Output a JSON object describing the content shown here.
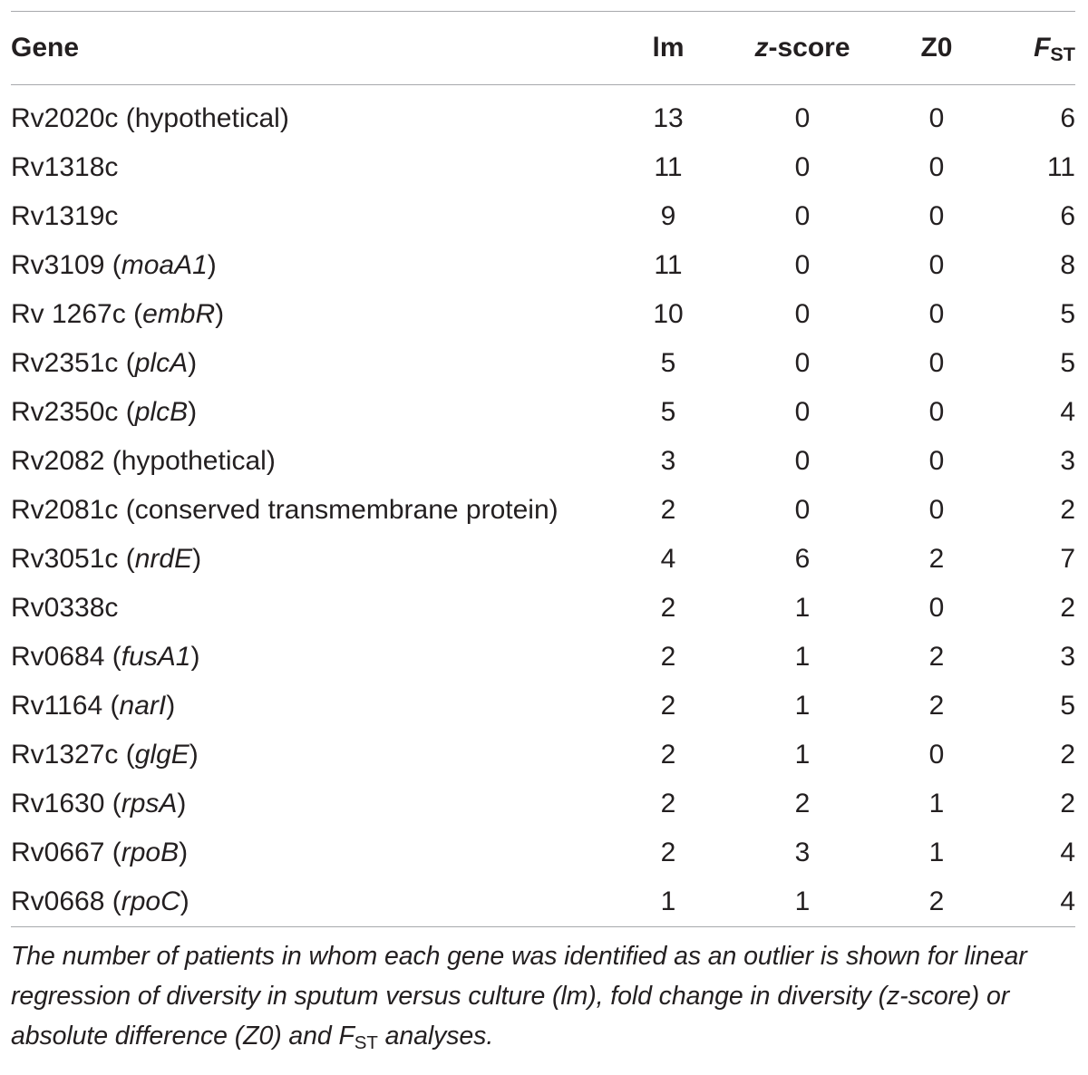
{
  "table": {
    "headers": {
      "gene": "Gene",
      "lm": "lm",
      "z_score_italic": "z",
      "z_score_rest": "-score",
      "z0": "Z0",
      "fst_main": "F",
      "fst_sub": "ST"
    },
    "rows": [
      {
        "gene_plain": "Rv2020c (hypothetical)",
        "gene_prefix": "",
        "gene_italic": "",
        "gene_suffix": "",
        "lm": "13",
        "z": "0",
        "z0": "0",
        "fst": "6"
      },
      {
        "gene_plain": "Rv1318c",
        "gene_prefix": "",
        "gene_italic": "",
        "gene_suffix": "",
        "lm": "11",
        "z": "0",
        "z0": "0",
        "fst": "11"
      },
      {
        "gene_plain": "Rv1319c",
        "gene_prefix": "",
        "gene_italic": "",
        "gene_suffix": "",
        "lm": "9",
        "z": "0",
        "z0": "0",
        "fst": "6"
      },
      {
        "gene_plain": "",
        "gene_prefix": "Rv3109 (",
        "gene_italic": "moaA1",
        "gene_suffix": ")",
        "lm": "11",
        "z": "0",
        "z0": "0",
        "fst": "8"
      },
      {
        "gene_plain": "",
        "gene_prefix": "Rv 1267c (",
        "gene_italic": "embR",
        "gene_suffix": ")",
        "lm": "10",
        "z": "0",
        "z0": "0",
        "fst": "5"
      },
      {
        "gene_plain": "",
        "gene_prefix": "Rv2351c (",
        "gene_italic": "plcA",
        "gene_suffix": ")",
        "lm": "5",
        "z": "0",
        "z0": "0",
        "fst": "5"
      },
      {
        "gene_plain": "",
        "gene_prefix": "Rv2350c (",
        "gene_italic": "plcB",
        "gene_suffix": ")",
        "lm": "5",
        "z": "0",
        "z0": "0",
        "fst": "4"
      },
      {
        "gene_plain": "Rv2082 (hypothetical)",
        "gene_prefix": "",
        "gene_italic": "",
        "gene_suffix": "",
        "lm": "3",
        "z": "0",
        "z0": "0",
        "fst": "3"
      },
      {
        "gene_plain": "Rv2081c (conserved transmembrane protein)",
        "gene_prefix": "",
        "gene_italic": "",
        "gene_suffix": "",
        "lm": "2",
        "z": "0",
        "z0": "0",
        "fst": "2"
      },
      {
        "gene_plain": "",
        "gene_prefix": "Rv3051c (",
        "gene_italic": "nrdE",
        "gene_suffix": ")",
        "lm": "4",
        "z": "6",
        "z0": "2",
        "fst": "7"
      },
      {
        "gene_plain": "Rv0338c",
        "gene_prefix": "",
        "gene_italic": "",
        "gene_suffix": "",
        "lm": "2",
        "z": "1",
        "z0": "0",
        "fst": "2"
      },
      {
        "gene_plain": "",
        "gene_prefix": "Rv0684 (",
        "gene_italic": "fusA1",
        "gene_suffix": ")",
        "lm": "2",
        "z": "1",
        "z0": "2",
        "fst": "3"
      },
      {
        "gene_plain": "",
        "gene_prefix": "Rv1164 (",
        "gene_italic": "narI",
        "gene_suffix": ")",
        "lm": "2",
        "z": "1",
        "z0": "2",
        "fst": "5"
      },
      {
        "gene_plain": "",
        "gene_prefix": "Rv1327c (",
        "gene_italic": "glgE",
        "gene_suffix": ")",
        "lm": "2",
        "z": "1",
        "z0": "0",
        "fst": "2"
      },
      {
        "gene_plain": "",
        "gene_prefix": "Rv1630 (",
        "gene_italic": "rpsA",
        "gene_suffix": ")",
        "lm": "2",
        "z": "2",
        "z0": "1",
        "fst": "2"
      },
      {
        "gene_plain": "",
        "gene_prefix": "Rv0667 (",
        "gene_italic": "rpoB",
        "gene_suffix": ")",
        "lm": "2",
        "z": "3",
        "z0": "1",
        "fst": "4"
      },
      {
        "gene_plain": "",
        "gene_prefix": "Rv0668 (",
        "gene_italic": "rpoC",
        "gene_suffix": ")",
        "lm": "1",
        "z": "1",
        "z0": "2",
        "fst": "4"
      }
    ]
  },
  "caption": {
    "part1": "The number of patients in whom each gene was identified as an outlier is shown for linear regression of diversity in sputum versus culture (lm), fold change in diversity (z-score) or absolute difference (Z0) and F",
    "sub": "ST",
    "part2": " analyses."
  },
  "colors": {
    "text": "#231f20",
    "rule": "#a7a9ac",
    "background": "#ffffff"
  }
}
